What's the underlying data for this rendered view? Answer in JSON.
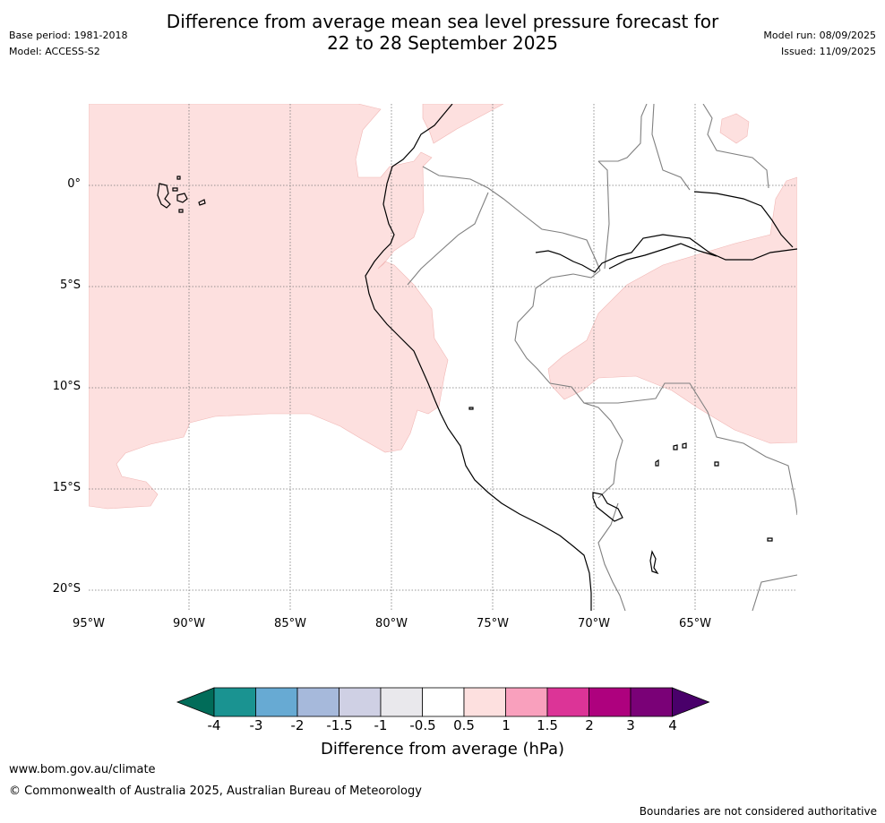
{
  "title_line1": "Difference from average mean sea level pressure forecast for",
  "title_line2": "22 to 28 September 2025",
  "base_period": "Base period: 1981-2018",
  "model": "Model: ACCESS-S2",
  "model_run": "Model run: 08/09/2025",
  "issued": "Issued: 11/09/2025",
  "lat_labels": [
    "0°",
    "5°S",
    "10°S",
    "15°S",
    "20°S"
  ],
  "lon_labels": [
    "95°W",
    "90°W",
    "85°W",
    "80°W",
    "75°W",
    "70°W",
    "65°W"
  ],
  "colorbar": {
    "title": "Difference from average (hPa)",
    "ticks": [
      "-4",
      "-3",
      "-2",
      "-1.5",
      "-1",
      "-0.5",
      "0.5",
      "1",
      "1.5",
      "2",
      "3",
      "4"
    ],
    "colors": [
      "#1a9391",
      "#67aad3",
      "#a6b9db",
      "#cfd0e4",
      "#e9e8ec",
      "#ffffff",
      "#fde0df",
      "#f9a0bd",
      "#dc3497",
      "#ae017e",
      "#7a0177"
    ],
    "low_extend_color": "#016c59",
    "high_extend_color": "#49006a",
    "anomaly_fill_color": "#fde0df"
  },
  "footer_url": "www.bom.gov.au/climate",
  "footer_copyright": "© Commonwealth of Australia 2025, Australian Bureau of Meteorology",
  "footer_disclaimer": "Boundaries are not considered authoritative"
}
